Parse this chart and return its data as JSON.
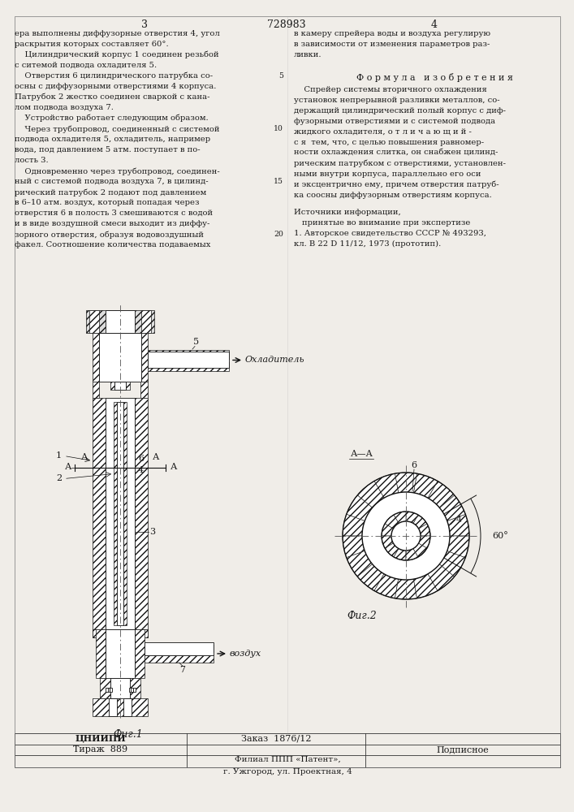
{
  "page_bg": "#f0ede8",
  "text_color": "#1a1a1a",
  "title_num": "728983",
  "page_left": "3",
  "page_right": "4",
  "left_col_lines": [
    "ера выполнены диффузорные отверстия 4, угол",
    "раскрытия которых составляет 60°.",
    "    Цилиндрический корпус 1 соединен резьбой",
    "с ситемой подвода охладителя 5.",
    "    Отверстия 6 цилиндрического патрубка со-",
    "осны с диффузорными отверстиями 4 корпуса.",
    "Патрубок 2 жестко соединен сваркой с кана-",
    "лом подвода воздуха 7.",
    "    Устройство работает следующим образом.",
    "    Через трубопровод, соединенный с системой",
    "подвода охладителя 5, охладитель, например",
    "вода, под давлением 5 атм. поступает в по-",
    "лость 3.",
    "    Одновременно через трубопровод, соединен-",
    "ный с системой подвода воздуха 7, в цилинд-",
    "рический патрубок 2 подают под давлением",
    "в 6–10 атм. воздух, который попадая через",
    "отверстия 6 в полость 3 смешиваются с водой",
    "и в виде воздушной смеси выходит из диффу-",
    "зорного отверстия, образуя водовоздушный",
    "факел. Соотношение количества подаваемых"
  ],
  "right_col_lines": [
    "в камеру спрейера воды и воздуха регулирую",
    "в зависимости от изменения параметров раз-",
    "ливки."
  ],
  "formula_header": "Ф о р м у л а   и з о б р е т е н и я",
  "formula_lines": [
    "    Спрейер системы вторичного охлаждения",
    "установок непрерывной разливки металлов, со-",
    "держащий цилиндрический полый корпус с диф-",
    "фузорными отверстиями и с системой подвода",
    "жидкого охладителя, о т л и ч а ю щ и й -",
    "с я  тем, что, с целью повышения равномер-",
    "ности охлаждения слитка, он снабжен цилинд-",
    "рическим патрубком с отверстиями, установлен-",
    "ными внутри корпуса, параллельно его оси",
    "и эксцентрично ему, причем отверстия патруб-",
    "ка соосны диффузорным отверстиям корпуса."
  ],
  "sources_header": "Источники информации,",
  "sources_sub": "принятые во внимание при экспертизе",
  "source1": "1. Авторское свидетельство СССР № 493293,",
  "source1b": "кл. В 22 D 11/12, 1973 (прототип).",
  "line_numbers_idx": [
    4,
    9,
    14,
    19
  ],
  "line_numbers_val": [
    "5",
    "10",
    "15",
    "20"
  ],
  "fig1_label": "Фиг.1",
  "fig2_label": "Фиг.2",
  "aa_label": "А—А",
  "coolant_label": "Охладитель",
  "air_label": "воздух",
  "cniipii": "ЦНИИПИ",
  "order": "Заказ  1876/12",
  "tirazh": "Тираж  889",
  "podp": "Подписное",
  "filial": "Филиал ППП «Патент»,",
  "uzhgorod": "г. Ужгород, ул. Проектная, 4"
}
